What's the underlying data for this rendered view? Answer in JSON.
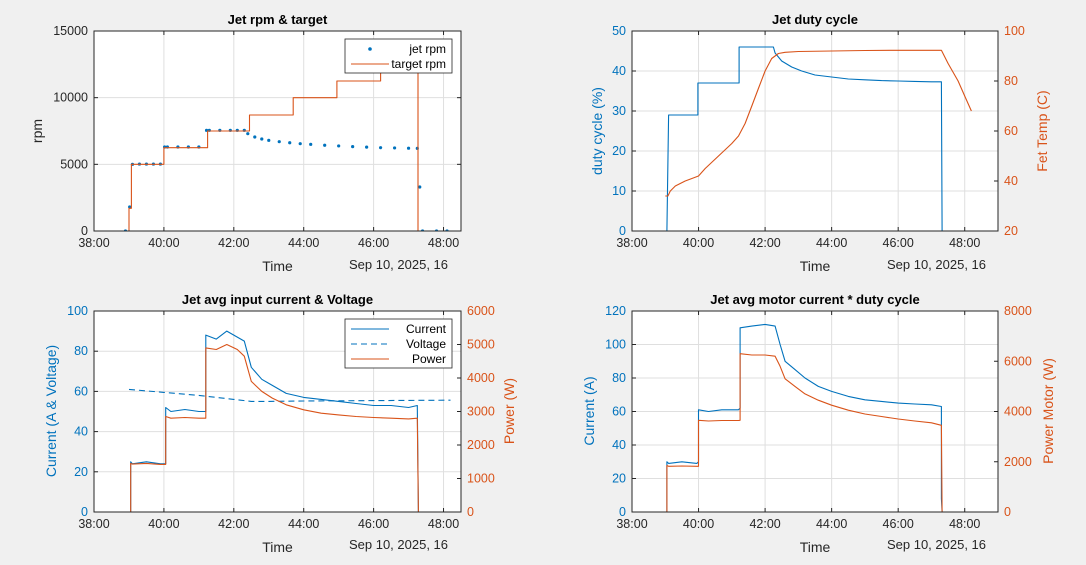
{
  "page": {
    "background": "#f0f0f0",
    "axes_background": "#ffffff",
    "grid_color": "#dfdfdf",
    "color_blue": "#0072bd",
    "color_orange": "#d95319"
  },
  "chart_data": [
    {
      "id": "p1",
      "type": "line",
      "title": "Jet rpm & target",
      "xlabel": "Time",
      "date_label": "Sep 10, 2025, 16",
      "ylabel": "rpm",
      "xlim": [
        38,
        48.5
      ],
      "xticks": [
        38,
        40,
        42,
        44,
        46,
        48
      ],
      "xtick_labels": [
        "38:00",
        "40:00",
        "42:00",
        "44:00",
        "46:00",
        "48:00"
      ],
      "ylim": [
        0,
        15000
      ],
      "yticks": [
        0,
        5000,
        10000,
        15000
      ],
      "ytick_labels": [
        "0",
        "5000",
        "10000",
        "15000"
      ],
      "grid": true,
      "legend": {
        "location": "top-right",
        "entries": [
          "jet rpm",
          "target rpm"
        ]
      },
      "series": [
        {
          "name": "jet rpm",
          "style": "dots",
          "color": "#0072bd",
          "axis": "left",
          "x": [
            38.9,
            39.02,
            39.1,
            39.3,
            39.5,
            39.7,
            39.9,
            40.02,
            40.1,
            40.4,
            40.7,
            41.0,
            41.22,
            41.3,
            41.6,
            41.9,
            42.1,
            42.3,
            42.4,
            42.6,
            42.8,
            43.0,
            43.3,
            43.6,
            43.9,
            44.2,
            44.6,
            45.0,
            45.4,
            45.8,
            46.2,
            46.6,
            47.0,
            47.25,
            47.32,
            47.4,
            47.8,
            48.1
          ],
          "y": [
            0,
            1800,
            5000,
            5020,
            5020,
            5020,
            5020,
            6300,
            6300,
            6300,
            6300,
            6300,
            7550,
            7550,
            7550,
            7550,
            7550,
            7550,
            7300,
            7050,
            6900,
            6800,
            6700,
            6620,
            6550,
            6500,
            6430,
            6380,
            6330,
            6290,
            6250,
            6230,
            6210,
            6200,
            3300,
            0,
            0,
            0
          ]
        },
        {
          "name": "target rpm",
          "style": "line",
          "color": "#d95319",
          "axis": "left",
          "x": [
            39.0,
            39.0,
            39.07,
            39.07,
            40.0,
            40.0,
            41.25,
            41.25,
            42.45,
            42.45,
            43.7,
            43.7,
            44.95,
            44.95,
            46.2,
            46.2,
            47.27,
            47.27
          ],
          "y": [
            0,
            1700,
            1700,
            5000,
            5000,
            6250,
            6250,
            7500,
            7500,
            8700,
            8700,
            10000,
            10000,
            11250,
            11250,
            12500,
            12500,
            0
          ]
        }
      ]
    },
    {
      "id": "p2",
      "type": "line",
      "title": "Jet duty cycle",
      "xlabel": "Time",
      "date_label": "Sep 10, 2025, 16",
      "ylabel": "duty cycle (%)",
      "ylabel_right": "Fet Temp (C)",
      "xlim": [
        38,
        49
      ],
      "xticks": [
        38,
        40,
        42,
        44,
        46,
        48
      ],
      "xtick_labels": [
        "38:00",
        "40:00",
        "42:00",
        "44:00",
        "46:00",
        "48:00"
      ],
      "ylim": [
        0,
        50
      ],
      "yticks": [
        0,
        10,
        20,
        30,
        40,
        50
      ],
      "ytick_labels": [
        "0",
        "10",
        "20",
        "30",
        "40",
        "50"
      ],
      "ylim_right": [
        20,
        100
      ],
      "yticks_right": [
        20,
        40,
        60,
        80,
        100
      ],
      "ytick_labels_right": [
        "20",
        "40",
        "60",
        "80",
        "100"
      ],
      "grid": true,
      "series": [
        {
          "name": "",
          "style": "line",
          "color": "#0072bd",
          "axis": "left",
          "x": [
            39.05,
            39.05,
            39.1,
            39.3,
            39.6,
            39.98,
            39.98,
            40.1,
            40.5,
            41.0,
            41.22,
            41.22,
            41.5,
            42.0,
            42.25,
            42.3,
            42.5,
            42.8,
            43.1,
            43.5,
            44.0,
            44.5,
            45.0,
            45.5,
            46.0,
            46.5,
            47.0,
            47.3,
            47.32
          ],
          "y": [
            0,
            0,
            29,
            29,
            29,
            29,
            37,
            37,
            37,
            37,
            37,
            46,
            46,
            46,
            46,
            44.5,
            42.5,
            41,
            40,
            39,
            38.5,
            38,
            37.8,
            37.6,
            37.5,
            37.4,
            37.3,
            37.3,
            0
          ]
        },
        {
          "name": "",
          "style": "line",
          "color": "#d95319",
          "axis": "right",
          "x": [
            39.0,
            39.08,
            39.15,
            39.3,
            39.6,
            39.8,
            40.0,
            40.2,
            40.6,
            41.0,
            41.2,
            41.4,
            41.6,
            41.8,
            42.0,
            42.2,
            42.4,
            42.6,
            43.0,
            44.0,
            45.0,
            46.0,
            47.0,
            47.3,
            47.5,
            47.8,
            48.0,
            48.2
          ],
          "y": [
            34,
            34,
            36,
            38,
            40,
            41,
            42,
            45,
            50,
            55,
            58,
            63,
            70,
            77,
            84,
            89,
            91,
            91.5,
            91.8,
            92,
            92.2,
            92.3,
            92.3,
            92.3,
            87,
            80,
            74,
            68
          ]
        }
      ]
    },
    {
      "id": "p3",
      "type": "line",
      "title": "Jet avg input current & Voltage",
      "xlabel": "Time",
      "date_label": "Sep 10, 2025, 16",
      "ylabel": "Current (A & Voltage)",
      "ylabel_right": "Power (W)",
      "xlim": [
        38,
        48.5
      ],
      "xticks": [
        38,
        40,
        42,
        44,
        46,
        48
      ],
      "xtick_labels": [
        "38:00",
        "40:00",
        "42:00",
        "44:00",
        "46:00",
        "48:00"
      ],
      "ylim": [
        0,
        100
      ],
      "yticks": [
        0,
        20,
        40,
        60,
        80,
        100
      ],
      "ytick_labels": [
        "0",
        "20",
        "40",
        "60",
        "80",
        "100"
      ],
      "ylim_right": [
        0,
        6000
      ],
      "yticks_right": [
        0,
        1000,
        2000,
        3000,
        4000,
        5000,
        6000
      ],
      "ytick_labels_right": [
        "0",
        "1000",
        "2000",
        "3000",
        "4000",
        "5000",
        "6000"
      ],
      "grid": true,
      "legend": {
        "location": "top-right",
        "entries": [
          "Current",
          "Voltage",
          "Power"
        ]
      },
      "series": [
        {
          "name": "Current",
          "style": "line",
          "color": "#0072bd",
          "axis": "left",
          "x": [
            39.05,
            39.05,
            39.1,
            39.5,
            39.9,
            40.05,
            40.05,
            40.2,
            40.6,
            41.0,
            41.2,
            41.2,
            41.5,
            41.8,
            42.1,
            42.3,
            42.5,
            42.8,
            43.1,
            43.5,
            44.0,
            44.5,
            45.0,
            45.5,
            46.0,
            46.5,
            47.0,
            47.25,
            47.28
          ],
          "y": [
            0,
            25,
            24,
            25,
            24,
            24,
            52,
            50,
            51,
            50,
            50,
            88,
            86,
            90,
            87,
            85,
            72,
            66,
            63,
            59,
            57,
            56,
            55,
            54,
            53,
            53,
            52,
            53,
            0
          ]
        },
        {
          "name": "Voltage",
          "style": "dashed",
          "color": "#0072bd",
          "axis": "left",
          "x": [
            39.0,
            40.0,
            41.0,
            42.0,
            42.5,
            43.0,
            44.0,
            45.0,
            46.0,
            47.0,
            48.2
          ],
          "y": [
            61,
            59.5,
            58,
            56,
            55,
            55,
            55.2,
            55.3,
            55.4,
            55.5,
            55.6
          ]
        },
        {
          "name": "Power",
          "style": "line",
          "color": "#d95319",
          "axis": "right",
          "x": [
            39.05,
            39.05,
            39.1,
            39.5,
            39.9,
            40.05,
            40.05,
            40.2,
            40.6,
            41.0,
            41.2,
            41.2,
            41.5,
            41.8,
            42.1,
            42.3,
            42.5,
            42.8,
            43.1,
            43.5,
            44.0,
            44.5,
            45.0,
            45.5,
            46.0,
            46.5,
            47.0,
            47.25,
            47.28
          ],
          "y": [
            0,
            1450,
            1430,
            1450,
            1420,
            1420,
            2850,
            2800,
            2820,
            2800,
            2800,
            4900,
            4850,
            5000,
            4850,
            4650,
            3900,
            3600,
            3400,
            3200,
            3050,
            2950,
            2900,
            2850,
            2820,
            2800,
            2780,
            2800,
            0
          ]
        }
      ]
    },
    {
      "id": "p4",
      "type": "line",
      "title": "Jet avg motor current * duty cycle",
      "xlabel": "Time",
      "date_label": "Sep 10, 2025, 16",
      "ylabel": "Current (A)",
      "ylabel_right": "Power Motor (W)",
      "xlim": [
        38,
        49
      ],
      "xticks": [
        38,
        40,
        42,
        44,
        46,
        48
      ],
      "xtick_labels": [
        "38:00",
        "40:00",
        "42:00",
        "44:00",
        "46:00",
        "48:00"
      ],
      "ylim": [
        0,
        120
      ],
      "yticks": [
        0,
        20,
        40,
        60,
        80,
        100,
        120
      ],
      "ytick_labels": [
        "0",
        "20",
        "40",
        "60",
        "80",
        "100",
        "120"
      ],
      "ylim_right": [
        0,
        8000
      ],
      "yticks_right": [
        0,
        2000,
        4000,
        6000,
        8000
      ],
      "ytick_labels_right": [
        "0",
        "2000",
        "4000",
        "6000",
        "8000"
      ],
      "grid": true,
      "series": [
        {
          "name": "",
          "style": "line",
          "color": "#0072bd",
          "axis": "left",
          "x": [
            39.05,
            39.05,
            39.1,
            39.5,
            39.95,
            40.0,
            40.0,
            40.3,
            40.7,
            41.2,
            41.25,
            41.25,
            41.6,
            42.0,
            42.3,
            42.45,
            42.6,
            42.9,
            43.2,
            43.6,
            44.0,
            44.5,
            45.0,
            45.5,
            46.0,
            46.5,
            47.0,
            47.3,
            47.3,
            47.32
          ],
          "y": [
            0,
            30,
            29,
            30,
            29,
            30,
            61,
            60,
            61,
            61,
            62,
            110,
            111,
            112,
            111,
            100,
            90,
            85,
            80,
            75,
            72,
            69,
            67,
            66,
            65,
            64.5,
            64,
            63,
            8,
            0
          ]
        },
        {
          "name": "",
          "style": "line",
          "color": "#d95319",
          "axis": "right",
          "x": [
            39.05,
            39.05,
            39.1,
            39.5,
            39.95,
            40.0,
            40.0,
            40.3,
            40.7,
            41.2,
            41.25,
            41.25,
            41.6,
            42.0,
            42.3,
            42.45,
            42.6,
            42.9,
            43.2,
            43.6,
            44.0,
            44.5,
            45.0,
            45.5,
            46.0,
            46.5,
            47.0,
            47.3,
            47.32
          ],
          "y": [
            0,
            1850,
            1820,
            1830,
            1820,
            1820,
            3650,
            3620,
            3640,
            3640,
            3650,
            6300,
            6250,
            6250,
            6200,
            5800,
            5300,
            5000,
            4700,
            4450,
            4250,
            4050,
            3900,
            3800,
            3700,
            3620,
            3550,
            3450,
            0
          ]
        }
      ]
    }
  ]
}
